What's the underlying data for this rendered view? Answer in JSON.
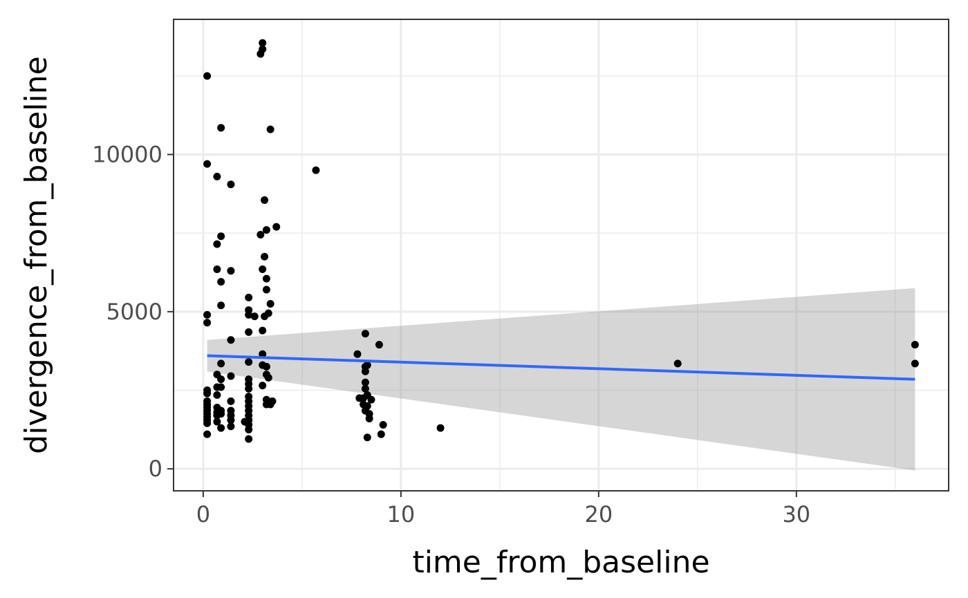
{
  "chart_data": {
    "type": "scatter",
    "xlabel": "time_from_baseline",
    "ylabel": "divergence_from_baseline",
    "xlim": [
      -1.5,
      37.7
    ],
    "ylim": [
      -700,
      14300
    ],
    "x_ticks": [
      0,
      10,
      20,
      30
    ],
    "x_tick_labels": [
      "0",
      "10",
      "20",
      "30"
    ],
    "y_ticks": [
      0,
      5000,
      10000
    ],
    "y_tick_labels": [
      "0",
      "5000",
      "10000"
    ],
    "x_minor_ticks": [
      5,
      15,
      25,
      35
    ],
    "y_minor_ticks": [
      2500,
      7500,
      12500
    ],
    "grid": true,
    "theme": "bw",
    "point_color": "#000000",
    "trend": {
      "method": "linear",
      "color": "#3366FF",
      "band_color": "#999999",
      "x": [
        0.2,
        36
      ],
      "y": [
        3600,
        2850
      ],
      "ci_lower": [
        3100,
        -50
      ],
      "ci_upper": [
        4100,
        5750
      ]
    },
    "points": [
      [
        0.2,
        12500
      ],
      [
        0.2,
        9700
      ],
      [
        0.2,
        4900
      ],
      [
        0.2,
        4650
      ],
      [
        0.2,
        2500
      ],
      [
        0.2,
        2400
      ],
      [
        0.2,
        2150
      ],
      [
        0.2,
        2050
      ],
      [
        0.2,
        1950
      ],
      [
        0.2,
        1850
      ],
      [
        0.2,
        1750
      ],
      [
        0.2,
        1650
      ],
      [
        0.2,
        1550
      ],
      [
        0.2,
        1450
      ],
      [
        0.2,
        1100
      ],
      [
        0.7,
        9300
      ],
      [
        0.7,
        7150
      ],
      [
        0.7,
        6350
      ],
      [
        0.7,
        3000
      ],
      [
        0.7,
        2600
      ],
      [
        0.7,
        2350
      ],
      [
        0.7,
        1950
      ],
      [
        0.7,
        1800
      ],
      [
        0.7,
        1700
      ],
      [
        0.7,
        1500
      ],
      [
        0.9,
        10850
      ],
      [
        0.9,
        7400
      ],
      [
        0.9,
        5950
      ],
      [
        0.9,
        5200
      ],
      [
        0.9,
        3350
      ],
      [
        0.9,
        2850
      ],
      [
        0.9,
        2600
      ],
      [
        0.9,
        1850
      ],
      [
        0.9,
        1750
      ],
      [
        0.9,
        1300
      ],
      [
        1.4,
        9050
      ],
      [
        1.4,
        6300
      ],
      [
        1.4,
        4100
      ],
      [
        1.4,
        2950
      ],
      [
        1.4,
        2150
      ],
      [
        1.4,
        1850
      ],
      [
        1.4,
        1700
      ],
      [
        1.4,
        1550
      ],
      [
        1.4,
        1350
      ],
      [
        2.1,
        1500
      ],
      [
        2.3,
        5450
      ],
      [
        2.3,
        5050
      ],
      [
        2.3,
        4900
      ],
      [
        2.3,
        4350
      ],
      [
        2.3,
        3400
      ],
      [
        2.3,
        2850
      ],
      [
        2.3,
        2700
      ],
      [
        2.3,
        2550
      ],
      [
        2.3,
        2300
      ],
      [
        2.3,
        2150
      ],
      [
        2.3,
        2000
      ],
      [
        2.3,
        1850
      ],
      [
        2.3,
        1700
      ],
      [
        2.3,
        1550
      ],
      [
        2.3,
        1400
      ],
      [
        2.3,
        1250
      ],
      [
        2.3,
        950
      ],
      [
        2.6,
        4850
      ],
      [
        2.9,
        13200
      ],
      [
        2.9,
        7450
      ],
      [
        3.0,
        13550
      ],
      [
        3.0,
        13350
      ],
      [
        3.0,
        6350
      ],
      [
        3.0,
        4400
      ],
      [
        3.0,
        3650
      ],
      [
        3.0,
        3300
      ],
      [
        3.0,
        2650
      ],
      [
        3.1,
        8550
      ],
      [
        3.1,
        6750
      ],
      [
        3.1,
        4850
      ],
      [
        3.2,
        7600
      ],
      [
        3.2,
        6050
      ],
      [
        3.2,
        5700
      ],
      [
        3.2,
        3250
      ],
      [
        3.2,
        3000
      ],
      [
        3.2,
        2200
      ],
      [
        3.2,
        2050
      ],
      [
        3.3,
        4950
      ],
      [
        3.3,
        2900
      ],
      [
        3.4,
        10800
      ],
      [
        3.4,
        5250
      ],
      [
        3.4,
        2050
      ],
      [
        3.5,
        2150
      ],
      [
        3.7,
        7700
      ],
      [
        5.7,
        9500
      ],
      [
        7.8,
        3650
      ],
      [
        7.9,
        2250
      ],
      [
        8.1,
        2250
      ],
      [
        8.1,
        2050
      ],
      [
        8.2,
        4300
      ],
      [
        8.2,
        3250
      ],
      [
        8.2,
        3100
      ],
      [
        8.2,
        2750
      ],
      [
        8.2,
        2550
      ],
      [
        8.2,
        1850
      ],
      [
        8.3,
        3300
      ],
      [
        8.3,
        2350
      ],
      [
        8.3,
        2000
      ],
      [
        8.3,
        1000
      ],
      [
        8.4,
        1750
      ],
      [
        8.4,
        1600
      ],
      [
        8.5,
        2200
      ],
      [
        8.9,
        3950
      ],
      [
        9.0,
        1100
      ],
      [
        9.1,
        1400
      ],
      [
        12.0,
        1300
      ],
      [
        24.0,
        3350
      ],
      [
        36.0,
        3950
      ],
      [
        36.0,
        3350
      ]
    ]
  }
}
